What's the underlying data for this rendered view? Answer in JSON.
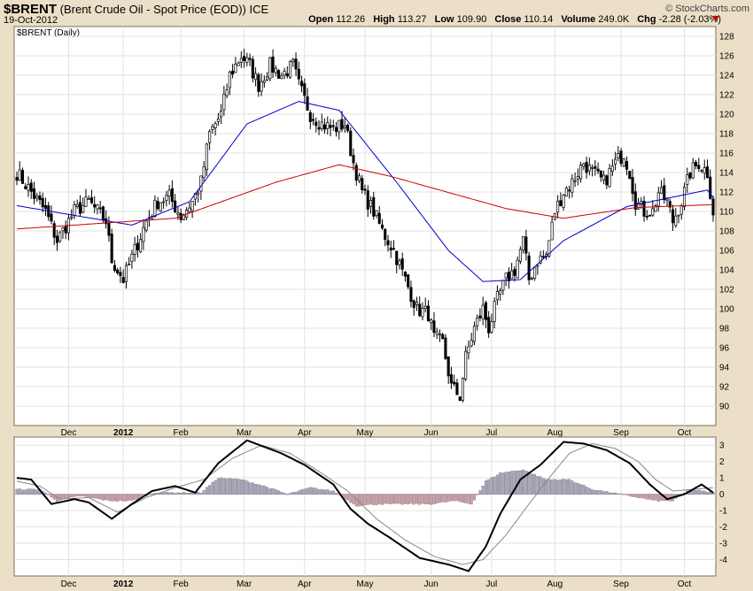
{
  "header": {
    "symbol": "$BRENT",
    "description": "(Brent Crude Oil - Spot Price (EOD)) ICE",
    "date": "19-Oct-2012",
    "logo": "© StockCharts.com",
    "open_label": "Open",
    "open": "112.26",
    "high_label": "High",
    "high": "113.27",
    "low_label": "Low",
    "low": "109.90",
    "close_label": "Close",
    "close": "110.14",
    "volume_label": "Volume",
    "volume": "249.0K",
    "chg_label": "Chg",
    "chg": "-2.28 (-2.03%)",
    "chg_color": "#cc0000"
  },
  "chart_data": [
    {
      "type": "candlestick",
      "title": "$BRENT (Daily)",
      "ylim": [
        88,
        129
      ],
      "yticks": [
        90,
        92,
        94,
        96,
        98,
        100,
        102,
        104,
        106,
        108,
        110,
        112,
        114,
        116,
        118,
        120,
        122,
        124,
        126,
        128
      ],
      "xticks": [
        "Dec",
        "2012",
        "Feb",
        "Mar",
        "Apr",
        "May",
        "Jun",
        "Jul",
        "Aug",
        "Sep",
        "Oct"
      ],
      "close_anchors": [
        [
          0,
          114
        ],
        [
          5,
          112
        ],
        [
          10,
          110
        ],
        [
          14,
          107
        ],
        [
          20,
          110
        ],
        [
          25,
          111
        ],
        [
          31,
          109
        ],
        [
          33,
          105
        ],
        [
          37,
          103
        ],
        [
          41,
          106
        ],
        [
          45,
          109
        ],
        [
          49,
          111
        ],
        [
          53,
          111.5
        ],
        [
          57,
          109.5
        ],
        [
          61,
          111
        ],
        [
          64,
          113
        ],
        [
          67,
          118
        ],
        [
          71,
          120
        ],
        [
          74,
          124
        ],
        [
          78,
          126
        ],
        [
          81,
          125
        ],
        [
          84,
          123
        ],
        [
          88,
          125
        ],
        [
          92,
          124
        ],
        [
          96,
          125
        ],
        [
          98,
          123
        ],
        [
          102,
          120
        ],
        [
          106,
          119
        ],
        [
          110,
          118.5
        ],
        [
          114,
          119
        ],
        [
          117,
          115
        ],
        [
          120,
          112
        ],
        [
          124,
          110
        ],
        [
          127,
          108
        ],
        [
          131,
          106
        ],
        [
          135,
          103
        ],
        [
          139,
          100
        ],
        [
          143,
          99.5
        ],
        [
          145,
          97
        ],
        [
          148,
          96.5
        ],
        [
          151,
          92
        ],
        [
          154,
          91
        ],
        [
          156,
          95
        ],
        [
          159,
          98
        ],
        [
          162,
          100
        ],
        [
          164,
          98
        ],
        [
          167,
          101
        ],
        [
          170,
          103
        ],
        [
          173,
          104
        ],
        [
          176,
          107
        ],
        [
          178,
          103
        ],
        [
          181,
          105
        ],
        [
          184,
          105.5
        ],
        [
          187,
          110
        ],
        [
          190,
          112
        ],
        [
          193,
          113
        ],
        [
          197,
          115
        ],
        [
          200,
          114
        ],
        [
          204,
          113
        ],
        [
          208,
          115
        ],
        [
          211,
          116
        ],
        [
          213,
          114
        ],
        [
          215,
          111
        ],
        [
          218,
          110
        ],
        [
          221,
          110
        ],
        [
          223,
          112
        ],
        [
          226,
          111
        ],
        [
          228,
          109
        ],
        [
          231,
          111
        ],
        [
          234,
          114
        ],
        [
          237,
          115
        ],
        [
          240,
          114
        ],
        [
          242,
          110
        ]
      ],
      "series": [
        {
          "name": "",
          "color": "#0000cc",
          "values": [
            [
              0,
              110.6
            ],
            [
              40,
              108.6
            ],
            [
              60,
              111
            ],
            [
              80,
              119
            ],
            [
              98,
              121.3
            ],
            [
              112,
              120.4
            ],
            [
              132,
              113
            ],
            [
              150,
              106
            ],
            [
              162,
              102.8
            ],
            [
              175,
              103
            ],
            [
              190,
              107
            ],
            [
              212,
              110.5
            ],
            [
              240,
              112.2
            ],
            [
              242,
              111.4
            ]
          ]
        },
        {
          "name": "",
          "color": "#cc0000",
          "values": [
            [
              0,
              108.2
            ],
            [
              55,
              109.3
            ],
            [
              90,
              113
            ],
            [
              112,
              114.8
            ],
            [
              130,
              113.6
            ],
            [
              170,
              110.3
            ],
            [
              190,
              109.3
            ],
            [
              215,
              110.4
            ],
            [
              242,
              110.7
            ]
          ]
        }
      ]
    },
    {
      "type": "line",
      "title": "",
      "ylim": [
        -5,
        3.5
      ],
      "yticks": [
        -4,
        -3,
        -2,
        -1,
        0,
        1,
        2,
        3
      ],
      "xticks": [
        "Dec",
        "2012",
        "Feb",
        "Mar",
        "Apr",
        "May",
        "Jun",
        "Jul",
        "Aug",
        "Sep",
        "Oct"
      ],
      "series": [
        {
          "name": "",
          "color": "#000000",
          "values": [
            [
              0,
              1.0
            ],
            [
              5,
              0.9
            ],
            [
              12,
              -0.6
            ],
            [
              20,
              -0.3
            ],
            [
              25,
              -0.5
            ],
            [
              33,
              -1.5
            ],
            [
              40,
              -0.6
            ],
            [
              47,
              0.2
            ],
            [
              55,
              0.5
            ],
            [
              62,
              0.1
            ],
            [
              70,
              1.9
            ],
            [
              80,
              3.3
            ],
            [
              92,
              2.5
            ],
            [
              100,
              1.8
            ],
            [
              110,
              0.6
            ],
            [
              116,
              -0.9
            ],
            [
              122,
              -1.8
            ],
            [
              130,
              -2.7
            ],
            [
              140,
              -3.9
            ],
            [
              150,
              -4.3
            ],
            [
              157,
              -4.7
            ],
            [
              163,
              -3.2
            ],
            [
              168,
              -1.2
            ],
            [
              175,
              0.9
            ],
            [
              182,
              1.8
            ],
            [
              190,
              3.2
            ],
            [
              197,
              3.1
            ],
            [
              205,
              2.7
            ],
            [
              213,
              1.9
            ],
            [
              220,
              0.6
            ],
            [
              226,
              -0.3
            ],
            [
              232,
              0.0
            ],
            [
              238,
              0.6
            ],
            [
              242,
              0.1
            ]
          ]
        },
        {
          "name": "",
          "color": "#888888",
          "values": [
            [
              0,
              0.8
            ],
            [
              8,
              0.5
            ],
            [
              15,
              -0.3
            ],
            [
              25,
              -0.2
            ],
            [
              35,
              -1.1
            ],
            [
              45,
              -0.2
            ],
            [
              55,
              0.4
            ],
            [
              65,
              0.9
            ],
            [
              75,
              2.2
            ],
            [
              85,
              3.0
            ],
            [
              95,
              2.5
            ],
            [
              105,
              1.4
            ],
            [
              115,
              0.2
            ],
            [
              125,
              -1.5
            ],
            [
              135,
              -2.8
            ],
            [
              145,
              -3.8
            ],
            [
              155,
              -4.3
            ],
            [
              162,
              -4.0
            ],
            [
              170,
              -2.5
            ],
            [
              178,
              -0.6
            ],
            [
              185,
              1.0
            ],
            [
              192,
              2.5
            ],
            [
              200,
              3.1
            ],
            [
              208,
              2.8
            ],
            [
              216,
              2.0
            ],
            [
              222,
              0.9
            ],
            [
              228,
              0.2
            ],
            [
              235,
              0.3
            ],
            [
              242,
              0.4
            ]
          ]
        }
      ],
      "histogram": [
        [
          0,
          0.3
        ],
        [
          8,
          0.3
        ],
        [
          14,
          -0.4
        ],
        [
          22,
          -0.1
        ],
        [
          32,
          -0.4
        ],
        [
          40,
          -0.4
        ],
        [
          48,
          0.1
        ],
        [
          58,
          0.1
        ],
        [
          64,
          0.1
        ],
        [
          70,
          1.0
        ],
        [
          78,
          0.9
        ],
        [
          86,
          0.5
        ],
        [
          94,
          0.0
        ],
        [
          102,
          0.4
        ],
        [
          110,
          0.2
        ],
        [
          118,
          -0.7
        ],
        [
          126,
          -0.6
        ],
        [
          134,
          -0.6
        ],
        [
          144,
          -0.6
        ],
        [
          152,
          -0.4
        ],
        [
          158,
          -0.6
        ],
        [
          163,
          0.8
        ],
        [
          168,
          1.3
        ],
        [
          176,
          1.5
        ],
        [
          184,
          0.9
        ],
        [
          192,
          0.9
        ],
        [
          200,
          0.3
        ],
        [
          210,
          0.0
        ],
        [
          216,
          -0.2
        ],
        [
          222,
          -0.4
        ],
        [
          228,
          -0.4
        ],
        [
          234,
          0.3
        ],
        [
          242,
          0.1
        ]
      ],
      "hist_pos_color": "#a8a8b8",
      "hist_neg_color": "#c8a2aa"
    }
  ]
}
